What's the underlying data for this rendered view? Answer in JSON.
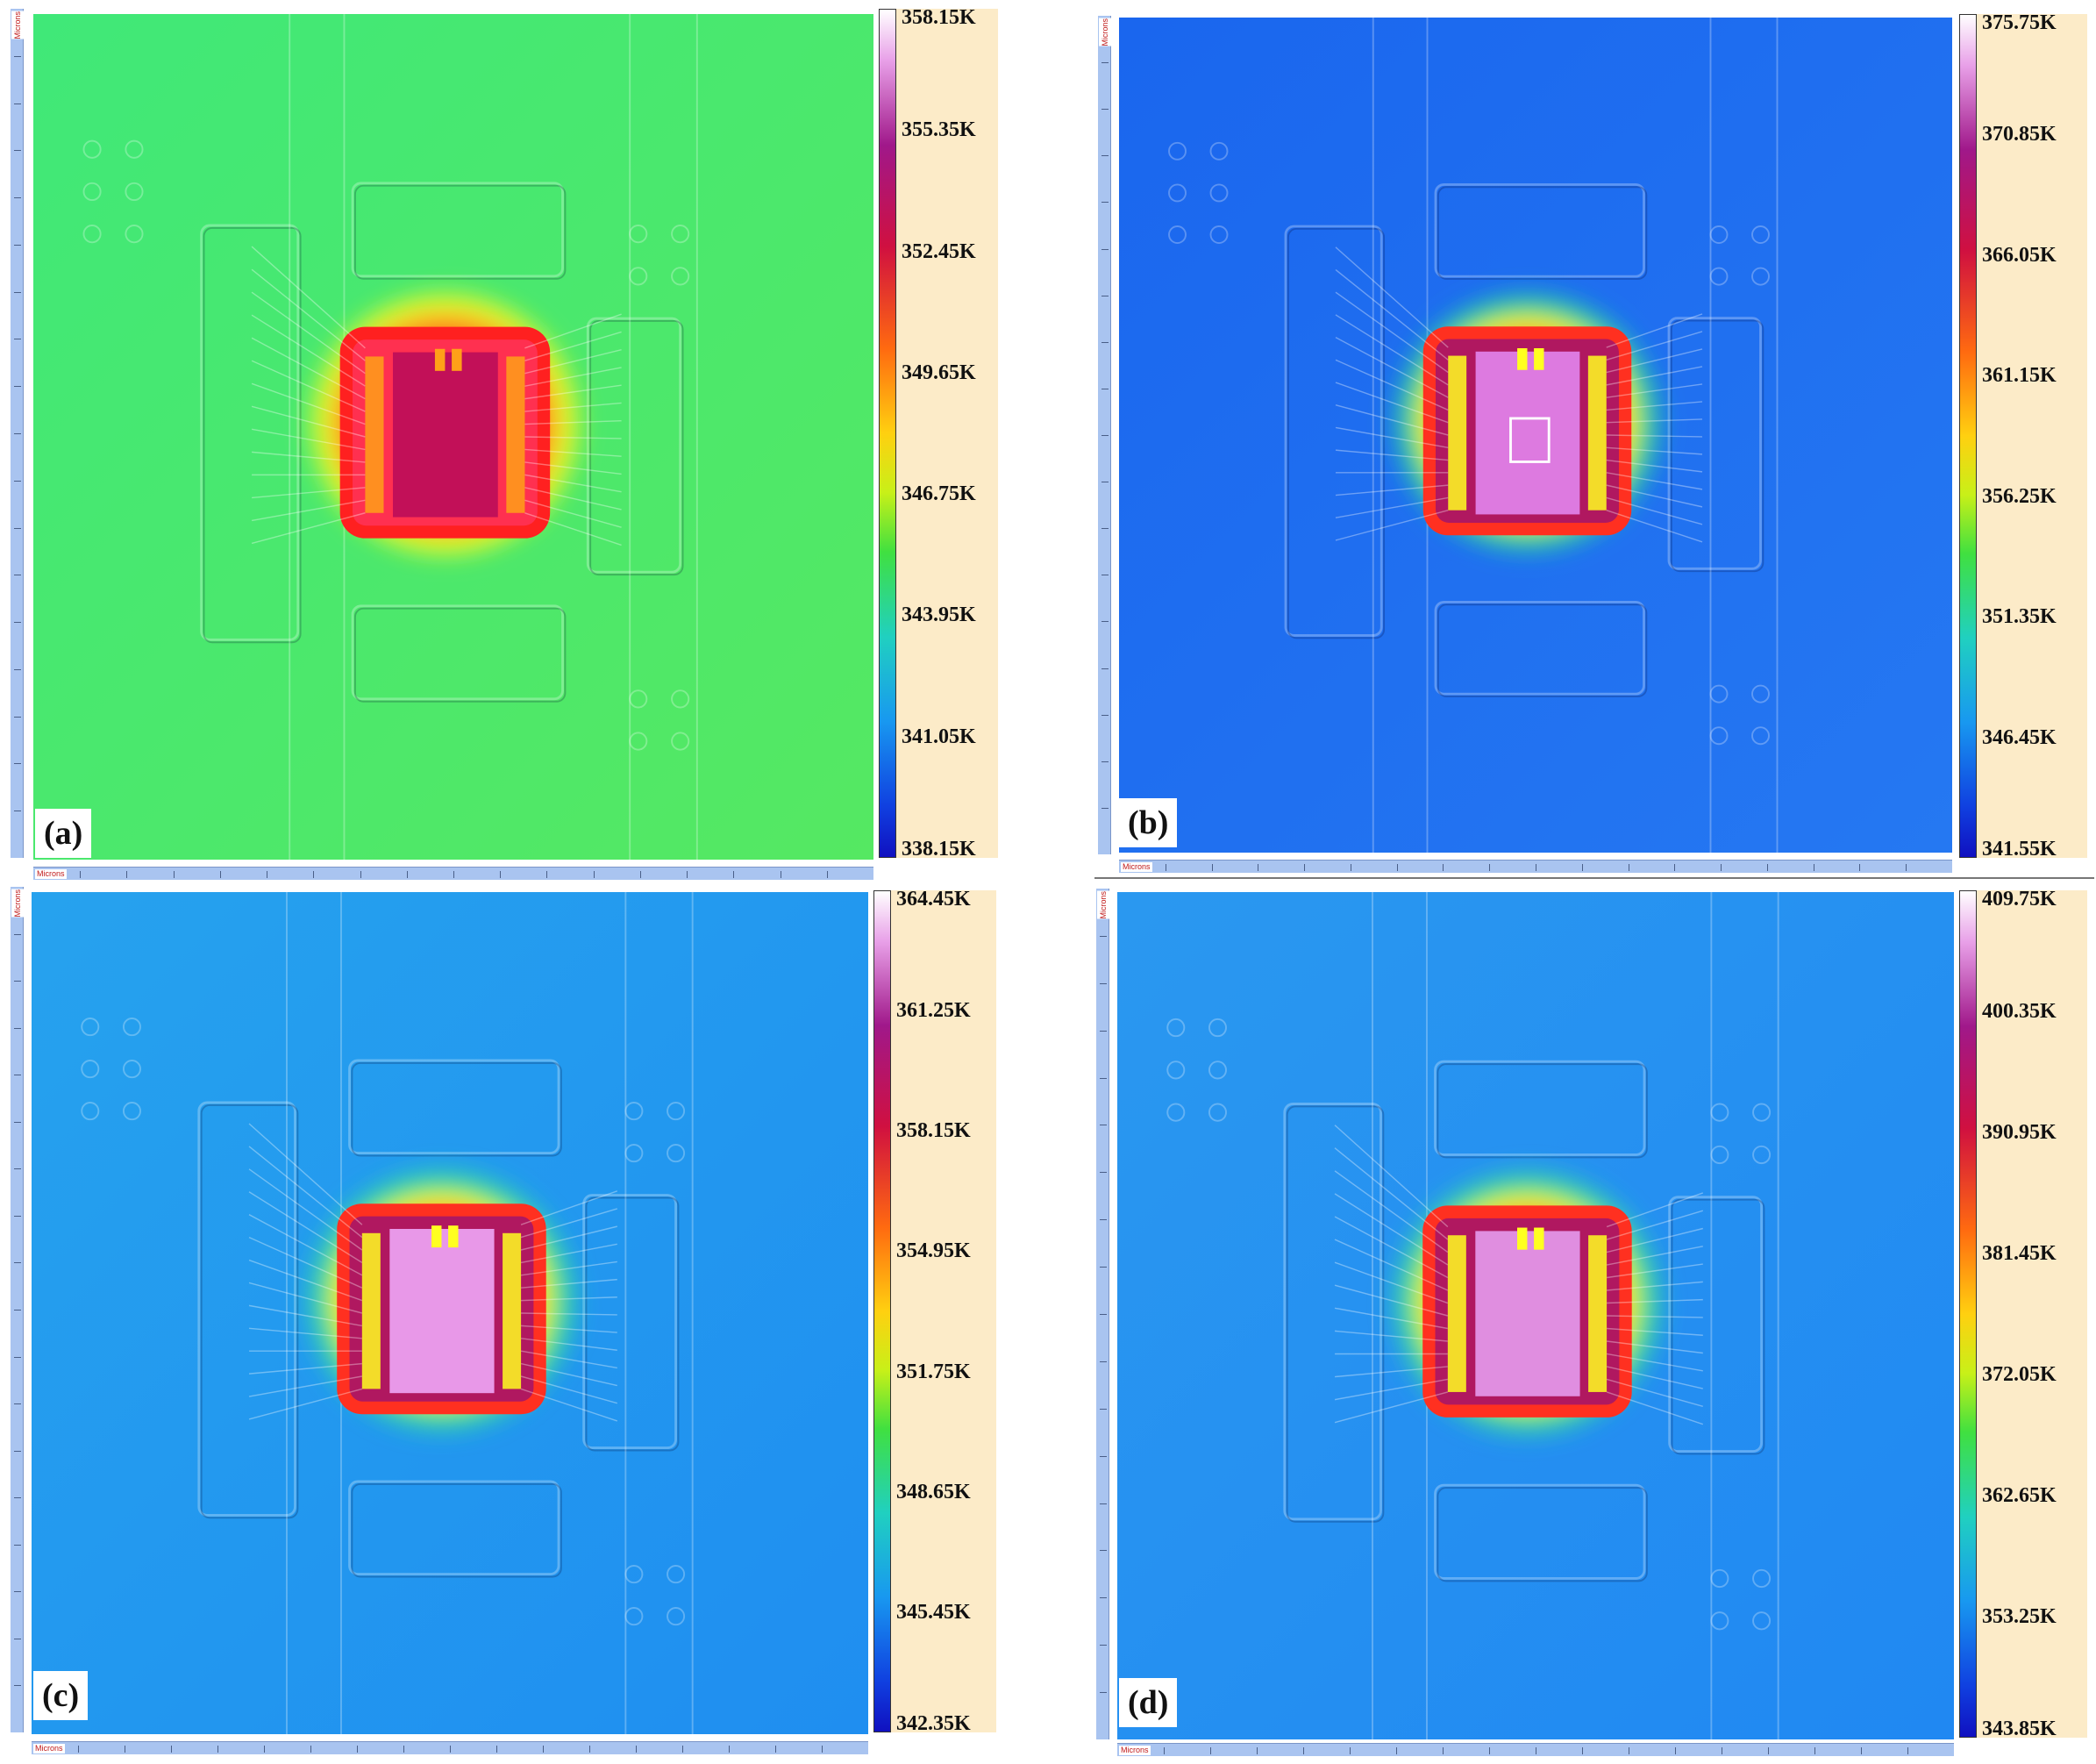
{
  "ruler_label": "Microns",
  "panels": [
    {
      "id": "a",
      "tag": "(a)",
      "bg": "#40e878",
      "bg2": "#55e862",
      "halo": [
        "#ffff20",
        "#ffa018",
        "#ff2020"
      ],
      "die": "#c21058",
      "die_edge": "#ff3050",
      "legend": [
        "358.15K",
        "355.35K",
        "352.45K",
        "349.65K",
        "346.75K",
        "343.95K",
        "341.05K",
        "338.15K"
      ]
    },
    {
      "id": "b",
      "tag": "(b)",
      "bg": "#1a66ee",
      "bg2": "#2578f2",
      "halo": [
        "#25d8a0",
        "#ffff20",
        "#ff3020"
      ],
      "die": "#dd7ae0",
      "die_edge": "#b01860",
      "legend": [
        "375.75K",
        "370.85K",
        "366.05K",
        "361.15K",
        "356.25K",
        "351.35K",
        "346.45K",
        "341.55K"
      ]
    },
    {
      "id": "c",
      "tag": "(c)",
      "bg": "#26a2ee",
      "bg2": "#1f8ef0",
      "halo": [
        "#30e0a0",
        "#ffff20",
        "#ff3020"
      ],
      "die": "#e898e8",
      "die_edge": "#b01860",
      "legend": [
        "364.45K",
        "361.25K",
        "358.15K",
        "354.95K",
        "351.75K",
        "348.65K",
        "345.45K",
        "342.35K"
      ]
    },
    {
      "id": "d",
      "tag": "(d)",
      "bg": "#2a98f0",
      "bg2": "#2088f2",
      "halo": [
        "#30e0a0",
        "#ffff20",
        "#ff3020"
      ],
      "die": "#e08ee0",
      "die_edge": "#b01860",
      "legend": [
        "409.75K",
        "400.35K",
        "390.95K",
        "381.45K",
        "372.05K",
        "362.65K",
        "353.25K",
        "343.85K"
      ]
    }
  ]
}
